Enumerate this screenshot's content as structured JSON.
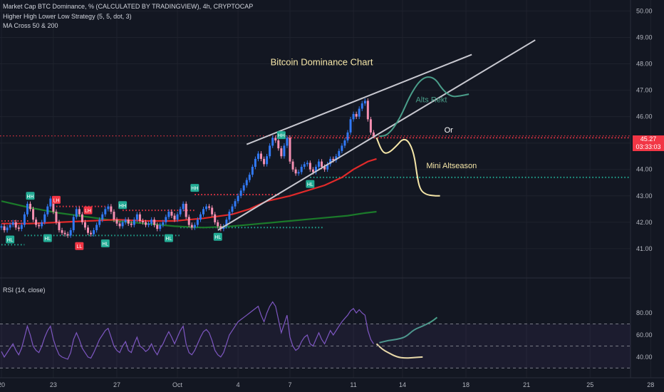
{
  "header": {
    "title": "Market Cap BTC Dominance, % (CALCULATED BY TRADINGVIEW), 4h, CRYPTOCAP",
    "indicator_1": "Higher High Lower Low Strategy (5, 5, dot, 3)",
    "indicator_2": "MA Cross 50 & 200"
  },
  "rsi_pane": {
    "label": "RSI (14, close)"
  },
  "price_badge": {
    "price": "45.27",
    "countdown": "03:33:03"
  },
  "colors": {
    "background": "#131722",
    "up_candle": "#3179f5",
    "down_candle": "#f48fb1",
    "ma_fast": "#e02a2a",
    "ma_slow": "#1b7a2a",
    "swing_high": "#f23645",
    "swing_low": "#22ab94",
    "rsi_line": "#7e57c2",
    "trendline": "#c8c8d0",
    "alts_rekt_path": "#4a9e8a",
    "mini_altseason_path": "#f5e6a8"
  },
  "chart_data": [
    {
      "type": "candlestick",
      "title": "Market Cap BTC Dominance, % (CALCULATED BY TRADINGVIEW), 4h, CRYPTOCAP",
      "x_ticks": [
        "20",
        "23",
        "27",
        "Oct",
        "4",
        "7",
        "11",
        "14",
        "18",
        "21",
        "25",
        "28"
      ],
      "x_tick_index": [
        0,
        18,
        40,
        61,
        82,
        100,
        122,
        139,
        161,
        182,
        204,
        225
      ],
      "y_ticks": [
        41.0,
        42.0,
        43.0,
        44.0,
        45.0,
        46.0,
        47.0,
        48.0,
        49.0,
        50.0
      ],
      "ylim": [
        40.35,
        50.2
      ],
      "close": [
        41.85,
        41.7,
        41.8,
        41.9,
        42.0,
        41.8,
        41.75,
        41.9,
        42.3,
        42.7,
        42.5,
        42.1,
        41.9,
        41.85,
        42.0,
        42.3,
        42.6,
        42.9,
        42.4,
        42.0,
        41.7,
        41.6,
        41.55,
        41.5,
        41.7,
        42.2,
        42.5,
        42.3,
        42.0,
        41.8,
        41.6,
        41.55,
        41.7,
        41.9,
        42.1,
        42.3,
        42.5,
        42.6,
        42.4,
        42.1,
        41.95,
        41.85,
        42.0,
        42.1,
        41.95,
        41.9,
        42.1,
        42.3,
        42.05,
        42.0,
        41.9,
        41.95,
        42.1,
        41.9,
        41.75,
        41.9,
        42.0,
        42.2,
        42.4,
        42.25,
        42.1,
        42.3,
        42.5,
        42.7,
        42.2,
        41.9,
        41.8,
        41.9,
        42.1,
        42.3,
        42.5,
        42.6,
        42.55,
        42.3,
        42.0,
        41.85,
        41.75,
        41.85,
        42.1,
        42.4,
        42.6,
        42.8,
        43.0,
        43.2,
        43.4,
        43.6,
        43.8,
        44.1,
        44.4,
        44.6,
        44.4,
        44.2,
        44.5,
        44.9,
        45.2,
        45.1,
        44.8,
        44.5,
        44.9,
        45.2,
        44.3,
        44.0,
        43.85,
        43.9,
        44.1,
        44.2,
        44.25,
        44.0,
        43.9,
        44.1,
        44.3,
        44.1,
        44.0,
        44.2,
        44.4,
        44.35,
        44.5,
        44.7,
        44.9,
        45.1,
        45.4,
        45.9,
        46.1,
        46.0,
        46.3,
        46.5,
        46.6,
        45.9,
        45.4,
        45.27
      ],
      "ma_fast_points": [
        [
          0,
          41.95
        ],
        [
          10,
          41.95
        ],
        [
          20,
          42.0
        ],
        [
          30,
          42.05
        ],
        [
          40,
          42.1
        ],
        [
          50,
          42.05
        ],
        [
          60,
          42.05
        ],
        [
          70,
          42.15
        ],
        [
          80,
          42.3
        ],
        [
          86,
          42.5
        ],
        [
          92,
          42.8
        ],
        [
          100,
          43.0
        ],
        [
          106,
          43.2
        ],
        [
          112,
          43.4
        ],
        [
          118,
          43.7
        ],
        [
          122,
          44.0
        ],
        [
          127,
          44.3
        ],
        [
          130,
          44.4
        ]
      ],
      "ma_slow_points": [
        [
          0,
          42.8
        ],
        [
          10,
          42.55
        ],
        [
          20,
          42.35
        ],
        [
          30,
          42.2
        ],
        [
          40,
          42.05
        ],
        [
          50,
          41.95
        ],
        [
          60,
          41.85
        ],
        [
          70,
          41.8
        ],
        [
          80,
          41.85
        ],
        [
          90,
          41.95
        ],
        [
          100,
          42.05
        ],
        [
          110,
          42.15
        ],
        [
          120,
          42.25
        ],
        [
          126,
          42.35
        ],
        [
          130,
          42.4
        ]
      ],
      "labels": [
        {
          "text": "HH",
          "i": 10,
          "y": 43.0,
          "kind": "high"
        },
        {
          "text": "LH",
          "i": 19,
          "y": 42.85,
          "kind": "lowerhigh"
        },
        {
          "text": "LH",
          "i": 30,
          "y": 42.45,
          "kind": "lowerhigh"
        },
        {
          "text": "HH",
          "i": 42,
          "y": 42.65,
          "kind": "high"
        },
        {
          "text": "HH",
          "i": 67,
          "y": 43.3,
          "kind": "high"
        },
        {
          "text": "HH",
          "i": 97,
          "y": 45.3,
          "kind": "high"
        },
        {
          "text": "HL",
          "i": 3,
          "y": 41.35,
          "kind": "low"
        },
        {
          "text": "HL",
          "i": 16,
          "y": 41.4,
          "kind": "low"
        },
        {
          "text": "LL",
          "i": 27,
          "y": 41.1,
          "kind": "lowerlow"
        },
        {
          "text": "HL",
          "i": 36,
          "y": 41.2,
          "kind": "low"
        },
        {
          "text": "HL",
          "i": 58,
          "y": 41.4,
          "kind": "low"
        },
        {
          "text": "HL",
          "i": 75,
          "y": 41.45,
          "kind": "low"
        },
        {
          "text": "HL",
          "i": 107,
          "y": 43.45,
          "kind": "low"
        }
      ],
      "levels": [
        {
          "i0": 0,
          "i1": 10,
          "y": 42.05,
          "kind": "high"
        },
        {
          "i0": 19,
          "i1": 36,
          "y": 42.6,
          "kind": "high"
        },
        {
          "i0": 42,
          "i1": 67,
          "y": 42.45,
          "kind": "high"
        },
        {
          "i0": 67,
          "i1": 97,
          "y": 43.05,
          "kind": "high"
        },
        {
          "i0": 97,
          "i1": 225,
          "y": 45.2,
          "kind": "high"
        },
        {
          "i0": 0,
          "i1": 8,
          "y": 41.15,
          "kind": "low"
        },
        {
          "i0": 8,
          "i1": 62,
          "y": 41.5,
          "kind": "low"
        },
        {
          "i0": 62,
          "i1": 112,
          "y": 41.8,
          "kind": "low"
        },
        {
          "i0": 107,
          "i1": 225,
          "y": 43.7,
          "kind": "low"
        }
      ],
      "trendlines": [
        {
          "from": [
            85,
            44.95
          ],
          "to": [
            163,
            48.35
          ]
        },
        {
          "from": [
            75,
            41.7
          ],
          "to": [
            185,
            48.9
          ]
        }
      ],
      "annotations": [
        {
          "text": "Bitcoin Dominance Chart",
          "i": 111,
          "y": 47.95,
          "color": "#f5e6a8",
          "size": 13
        },
        {
          "text": "Alts Rekt",
          "i": 149,
          "y": 46.55,
          "color": "#4a9e8a",
          "size": 11
        },
        {
          "text": "Or",
          "i": 155,
          "y": 45.4,
          "color": "#ffffff",
          "size": 11
        },
        {
          "text": "Mini Altseason",
          "i": 156,
          "y": 44.05,
          "color": "#f5e6a8",
          "size": 11
        }
      ],
      "projection_alts_rekt": [
        [
          131,
          45.25
        ],
        [
          134,
          45.3
        ],
        [
          138,
          45.9
        ],
        [
          142,
          46.9
        ],
        [
          146,
          47.5
        ],
        [
          150,
          47.5
        ],
        [
          153,
          47.0
        ],
        [
          156,
          46.75
        ],
        [
          159,
          46.78
        ],
        [
          162,
          46.85
        ]
      ],
      "projection_mini_altseason": [
        [
          130,
          45.2
        ],
        [
          132,
          44.65
        ],
        [
          134,
          44.6
        ],
        [
          137,
          44.9
        ],
        [
          139,
          45.15
        ],
        [
          141,
          45.1
        ],
        [
          143,
          44.6
        ],
        [
          144,
          43.8
        ],
        [
          145,
          43.25
        ],
        [
          147,
          43.05
        ],
        [
          150,
          43.0
        ],
        [
          152,
          43.0
        ]
      ]
    },
    {
      "type": "line",
      "title": "RSI (14, close)",
      "y_ticks": [
        40.0,
        60.0,
        80.0
      ],
      "ylim": [
        27,
        93
      ],
      "bands": [
        30,
        50,
        70
      ],
      "values": [
        45,
        40,
        44,
        48,
        52,
        46,
        42,
        48,
        58,
        68,
        60,
        50,
        46,
        44,
        50,
        58,
        64,
        68,
        56,
        48,
        42,
        40,
        39,
        38,
        44,
        56,
        62,
        56,
        48,
        44,
        40,
        39,
        44,
        50,
        56,
        60,
        64,
        66,
        58,
        50,
        46,
        44,
        50,
        54,
        46,
        44,
        52,
        58,
        50,
        48,
        45,
        47,
        52,
        46,
        42,
        48,
        52,
        58,
        63,
        58,
        52,
        58,
        64,
        68,
        52,
        44,
        42,
        46,
        52,
        58,
        63,
        65,
        62,
        55,
        46,
        42,
        40,
        44,
        52,
        60,
        64,
        68,
        72,
        74,
        76,
        78,
        80,
        82,
        84,
        86,
        78,
        72,
        80,
        86,
        90,
        86,
        74,
        62,
        70,
        78,
        58,
        50,
        46,
        48,
        54,
        58,
        60,
        52,
        50,
        56,
        62,
        56,
        52,
        58,
        64,
        60,
        64,
        68,
        72,
        75,
        78,
        82,
        84,
        80,
        83,
        80,
        78,
        64,
        56,
        52
      ],
      "projection_up": [
        [
          131,
          53
        ],
        [
          134,
          55
        ],
        [
          137,
          56
        ],
        [
          140,
          58
        ],
        [
          143,
          65
        ],
        [
          146,
          68
        ],
        [
          149,
          72
        ],
        [
          151,
          76
        ]
      ],
      "projection_down": [
        [
          130,
          52
        ],
        [
          132,
          47
        ],
        [
          134,
          44
        ],
        [
          137,
          40
        ],
        [
          140,
          39
        ],
        [
          143,
          39.5
        ],
        [
          146,
          40
        ]
      ]
    }
  ]
}
